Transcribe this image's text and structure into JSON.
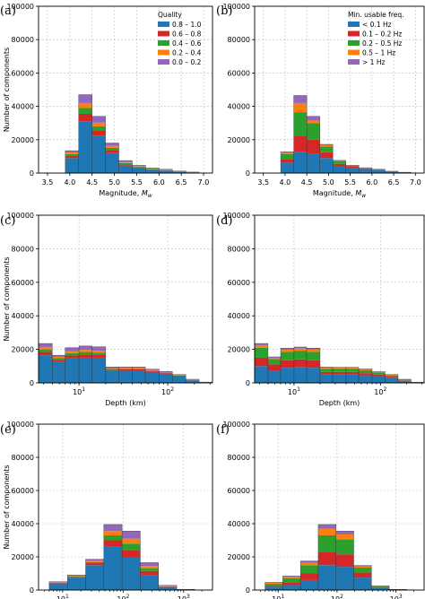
{
  "figure": {
    "colors": [
      "#1f77b4",
      "#d62728",
      "#2ca02c",
      "#ff7f0e",
      "#9467bd"
    ]
  },
  "chart_data": [
    {
      "panel": "(a)",
      "type": "bar",
      "stacked": true,
      "xscale": "linear",
      "xlabel": "Magnitude, M_w",
      "ylabel": "Number of components",
      "xlim": [
        3.3,
        7.2
      ],
      "ylim": [
        0,
        100000
      ],
      "xticks": [
        "3.5",
        "4.0",
        "4.5",
        "5.0",
        "5.5",
        "6.0",
        "6.5",
        "7.0"
      ],
      "yticks": [
        "0",
        "20000",
        "40000",
        "60000",
        "80000",
        "100000"
      ],
      "grid": true,
      "legend": {
        "title": "Quality",
        "placement": "top-right",
        "labels": [
          "0.8 – 1.0",
          "0.6 – 0.8",
          "0.4 – 0.6",
          "0.2 – 0.4",
          "0.0 – 0.2"
        ]
      },
      "bin_edges": [
        3.6,
        3.9,
        4.2,
        4.5,
        4.8,
        5.1,
        5.4,
        5.7,
        6.0,
        6.3,
        6.6,
        6.9,
        7.2
      ],
      "series": [
        {
          "name": "0.8 – 1.0",
          "values": [
            0,
            9000,
            31000,
            22500,
            12000,
            4500,
            3000,
            2000,
            1500,
            800,
            400,
            0
          ]
        },
        {
          "name": "0.6 – 0.8",
          "values": [
            0,
            1200,
            4500,
            3000,
            1800,
            800,
            400,
            300,
            200,
            100,
            50,
            0
          ]
        },
        {
          "name": "0.4 – 0.6",
          "values": [
            0,
            1200,
            3500,
            2500,
            1300,
            700,
            400,
            300,
            200,
            100,
            50,
            0
          ]
        },
        {
          "name": "0.2 – 0.4",
          "values": [
            0,
            1000,
            3000,
            2200,
            1200,
            600,
            300,
            200,
            150,
            100,
            50,
            0
          ]
        },
        {
          "name": "0.0 – 0.2",
          "values": [
            0,
            1000,
            5000,
            3800,
            1700,
            900,
            500,
            300,
            250,
            100,
            50,
            0
          ]
        }
      ]
    },
    {
      "panel": "(b)",
      "type": "bar",
      "stacked": true,
      "xscale": "linear",
      "xlabel": "Magnitude, M_w",
      "ylabel": "",
      "xlim": [
        3.3,
        7.2
      ],
      "ylim": [
        0,
        100000
      ],
      "xticks": [
        "3.5",
        "4.0",
        "4.5",
        "5.0",
        "5.5",
        "6.0",
        "6.5",
        "7.0"
      ],
      "yticks": [
        "0",
        "20000",
        "40000",
        "60000",
        "80000",
        "100000"
      ],
      "grid": true,
      "legend": {
        "title": "Min. usable freq.",
        "placement": "top-right",
        "labels": [
          "< 0.1 Hz",
          "0.1 – 0.2 Hz",
          "0.2 – 0.5 Hz",
          "0.5 – 1 Hz",
          "> 1 Hz"
        ]
      },
      "bin_edges": [
        3.6,
        3.9,
        4.2,
        4.5,
        4.8,
        5.1,
        5.4,
        5.7,
        6.0,
        6.3,
        6.6,
        6.9,
        7.2
      ],
      "series": [
        {
          "name": "< 0.1 Hz",
          "values": [
            0,
            6000,
            12500,
            11500,
            9000,
            4000,
            3000,
            2500,
            2000,
            800,
            400,
            0
          ]
        },
        {
          "name": "0.1 – 0.2 Hz",
          "values": [
            0,
            2500,
            10000,
            8500,
            3500,
            1500,
            800,
            300,
            100,
            100,
            50,
            0
          ]
        },
        {
          "name": "0.2 – 0.5 Hz",
          "values": [
            0,
            3000,
            14000,
            10000,
            3500,
            1500,
            500,
            200,
            100,
            100,
            50,
            0
          ]
        },
        {
          "name": "0.5 – 1 Hz",
          "values": [
            0,
            700,
            5500,
            1500,
            700,
            300,
            200,
            100,
            50,
            50,
            0,
            0
          ]
        },
        {
          "name": "> 1 Hz",
          "values": [
            0,
            500,
            4500,
            2500,
            500,
            300,
            200,
            100,
            50,
            50,
            0,
            0
          ]
        }
      ]
    },
    {
      "panel": "(c)",
      "type": "bar",
      "stacked": true,
      "xscale": "log",
      "xlabel": "Depth (km)",
      "ylabel": "Number of components",
      "xlim": [
        3.5,
        320
      ],
      "ylim": [
        0,
        100000
      ],
      "xticks": [
        "10^1",
        "10^2"
      ],
      "yticks": [
        "0",
        "20000",
        "40000",
        "60000",
        "80000",
        "100000"
      ],
      "grid": true,
      "bin_edges": [
        3.5,
        5,
        7,
        10,
        14,
        20,
        28,
        40,
        56,
        80,
        113,
        160,
        226,
        320
      ],
      "series": [
        {
          "name": "0.8 – 1.0",
          "values": [
            16500,
            12500,
            14500,
            15000,
            15000,
            7000,
            7500,
            7500,
            6500,
            5500,
            4000,
            1500,
            300
          ]
        },
        {
          "name": "0.6 – 0.8",
          "values": [
            2000,
            1200,
            1800,
            1800,
            1600,
            700,
            600,
            600,
            500,
            400,
            300,
            200,
            50
          ]
        },
        {
          "name": "0.4 – 0.6",
          "values": [
            1500,
            1000,
            1400,
            1600,
            1400,
            600,
            500,
            500,
            400,
            300,
            200,
            150,
            50
          ]
        },
        {
          "name": "0.2 – 0.4",
          "values": [
            1200,
            800,
            1200,
            1300,
            1200,
            500,
            400,
            400,
            300,
            250,
            200,
            100,
            50
          ]
        },
        {
          "name": "0.0 – 0.2",
          "values": [
            2300,
            1000,
            2100,
            2300,
            2300,
            700,
            500,
            500,
            500,
            350,
            300,
            200,
            50
          ]
        }
      ]
    },
    {
      "panel": "(d)",
      "type": "bar",
      "stacked": true,
      "xscale": "log",
      "xlabel": "Depth (km)",
      "ylabel": "",
      "xlim": [
        3.5,
        320
      ],
      "ylim": [
        0,
        100000
      ],
      "xticks": [
        "10^1",
        "10^2"
      ],
      "yticks": [
        "0",
        "20000",
        "40000",
        "60000",
        "80000",
        "100000"
      ],
      "grid": true,
      "bin_edges": [
        3.5,
        5,
        7,
        10,
        14,
        20,
        28,
        40,
        56,
        80,
        113,
        160,
        226,
        320
      ],
      "series": [
        {
          "name": "< 0.1 Hz",
          "values": [
            10000,
            7000,
            9000,
            9500,
            9000,
            5000,
            5000,
            5000,
            4500,
            4000,
            3000,
            1200,
            200
          ]
        },
        {
          "name": "0.1 – 0.2 Hz",
          "values": [
            5000,
            4000,
            4500,
            4500,
            4500,
            1500,
            1500,
            1500,
            1300,
            1000,
            700,
            300,
            50
          ]
        },
        {
          "name": "0.2 – 0.5 Hz",
          "values": [
            6000,
            3200,
            5000,
            5200,
            5000,
            2000,
            2000,
            2000,
            1800,
            1200,
            800,
            400,
            100
          ]
        },
        {
          "name": "0.5 – 1 Hz",
          "values": [
            1500,
            800,
            1300,
            1300,
            1300,
            500,
            500,
            500,
            400,
            300,
            300,
            150,
            50
          ]
        },
        {
          "name": "> 1 Hz",
          "values": [
            1000,
            500,
            900,
            900,
            900,
            400,
            300,
            300,
            300,
            200,
            200,
            100,
            50
          ]
        }
      ]
    },
    {
      "panel": "(e)",
      "type": "bar",
      "stacked": true,
      "xscale": "log",
      "xlabel": "Rupture distance (km)",
      "ylabel": "Number of components",
      "xlim": [
        4,
        3000
      ],
      "ylim": [
        0,
        100000
      ],
      "xticks": [
        "10^1",
        "10^2",
        "10^3"
      ],
      "yticks": [
        "0",
        "20000",
        "40000",
        "60000",
        "80000",
        "100000"
      ],
      "grid": true,
      "bin_edges": [
        6,
        12,
        24,
        48,
        96,
        192,
        384,
        768,
        1536
      ],
      "series": [
        {
          "name": "0.8 – 1.0",
          "values": [
            4000,
            7500,
            15000,
            26000,
            20000,
            9000,
            1800,
            200
          ]
        },
        {
          "name": "0.6 – 0.8",
          "values": [
            300,
            500,
            1200,
            4000,
            4000,
            2500,
            300,
            50
          ]
        },
        {
          "name": "0.4 – 0.6",
          "values": [
            200,
            300,
            700,
            3000,
            4000,
            1500,
            200,
            50
          ]
        },
        {
          "name": "0.2 – 0.4",
          "values": [
            200,
            300,
            700,
            2500,
            3000,
            1500,
            200,
            50
          ]
        },
        {
          "name": "0.0 – 0.2",
          "values": [
            300,
            400,
            900,
            4000,
            4500,
            2000,
            300,
            50
          ]
        }
      ]
    },
    {
      "panel": "(f)",
      "type": "bar",
      "stacked": true,
      "xscale": "log",
      "xlabel": "Rupture distance (km)",
      "ylabel": "",
      "xlim": [
        4,
        3000
      ],
      "ylim": [
        0,
        100000
      ],
      "xticks": [
        "10^1",
        "10^2",
        "10^3"
      ],
      "yticks": [
        "0",
        "20000",
        "40000",
        "60000",
        "80000",
        "100000"
      ],
      "grid": true,
      "bin_edges": [
        6,
        12,
        24,
        48,
        96,
        192,
        384,
        768,
        1536
      ],
      "series": [
        {
          "name": "< 0.1 Hz",
          "values": [
            2000,
            3000,
            6000,
            15000,
            14000,
            7500,
            1500,
            200
          ]
        },
        {
          "name": "0.1 – 0.2 Hz",
          "values": [
            800,
            1700,
            4000,
            8000,
            7500,
            3000,
            300,
            50
          ]
        },
        {
          "name": "0.2 – 0.5 Hz",
          "values": [
            1000,
            2500,
            5000,
            10000,
            9000,
            3000,
            500,
            50
          ]
        },
        {
          "name": "0.5 – 1 Hz",
          "values": [
            500,
            700,
            1500,
            4000,
            3000,
            800,
            200,
            50
          ]
        },
        {
          "name": "> 1 Hz",
          "values": [
            300,
            500,
            1000,
            2500,
            2000,
            500,
            100,
            50
          ]
        }
      ]
    }
  ]
}
